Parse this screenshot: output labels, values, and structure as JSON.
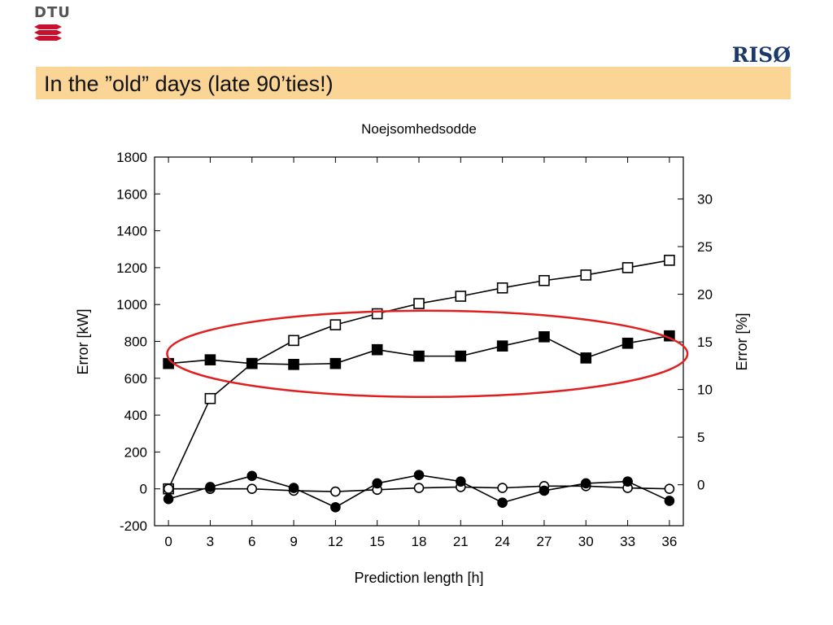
{
  "header": {
    "dtu_logo_text": "DTU",
    "riso_logo_text": "RISØ",
    "slide_title": "In the ”old” days (late 90’ties!)",
    "title_bar_color": "#fbd596",
    "riso_color": "#1b3a6b",
    "dtu_wave_color": "#c8102e"
  },
  "chart_data": {
    "type": "line",
    "title": "Noejsomhedsodde",
    "xlabel": "Prediction length [h]",
    "ylabel_left": "Error [kW]",
    "ylabel_right": "Error [%]",
    "x": [
      0,
      3,
      6,
      9,
      12,
      15,
      18,
      21,
      24,
      27,
      30,
      33,
      36
    ],
    "x_ticks": [
      0,
      3,
      6,
      9,
      12,
      15,
      18,
      21,
      24,
      27,
      30,
      33,
      36
    ],
    "xlim": [
      -1,
      37
    ],
    "ylim_left": [
      -200,
      1800
    ],
    "yticks_left": [
      -200,
      0,
      200,
      400,
      600,
      800,
      1000,
      1200,
      1400,
      1600,
      1800
    ],
    "ylim_right": [
      -4.3,
      34.4
    ],
    "yticks_right": [
      0,
      5,
      10,
      15,
      20,
      25,
      30
    ],
    "grid": false,
    "series": [
      {
        "marker": "open-square",
        "axis": "left",
        "values": [
          0,
          490,
          680,
          805,
          890,
          950,
          1005,
          1045,
          1090,
          1130,
          1160,
          1200,
          1240
        ]
      },
      {
        "marker": "filled-square",
        "axis": "left",
        "values": [
          680,
          700,
          680,
          675,
          680,
          755,
          720,
          720,
          775,
          825,
          710,
          790,
          830
        ]
      },
      {
        "marker": "open-circle",
        "axis": "left",
        "values": [
          0,
          0,
          0,
          -10,
          -15,
          -5,
          5,
          10,
          5,
          15,
          15,
          5,
          0
        ]
      },
      {
        "marker": "filled-circle",
        "axis": "left",
        "values": [
          -55,
          10,
          70,
          5,
          -100,
          30,
          75,
          40,
          -75,
          -10,
          30,
          40,
          -65
        ]
      }
    ],
    "annotation": {
      "shape": "ellipse",
      "color": "#e02020"
    }
  }
}
